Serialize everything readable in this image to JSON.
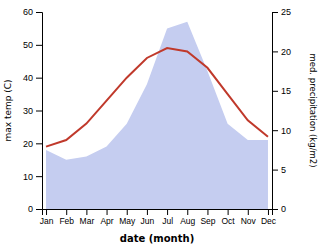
{
  "chart_data": {
    "type": "line",
    "xlabel": "date (month)",
    "ylabel": "max temp (C)",
    "y2label": "med. precipitation (kg/m2)",
    "categories": [
      "Jan",
      "Feb",
      "Mar",
      "Apr",
      "May",
      "Jun",
      "Jul",
      "Aug",
      "Sep",
      "Oct",
      "Nov",
      "Dec"
    ],
    "series": [
      {
        "type": "area",
        "color": "#c5cdf0",
        "values": [
          18,
          15,
          16,
          19,
          26,
          38,
          55,
          57,
          42,
          26,
          21,
          21
        ]
      },
      {
        "type": "line",
        "color": "#c0392b",
        "values": [
          19,
          21,
          26,
          33,
          40,
          46,
          49,
          48,
          43,
          35,
          27,
          22
        ]
      }
    ],
    "ylim": [
      0,
      60
    ],
    "yticks": [
      0,
      10,
      20,
      30,
      40,
      50,
      60
    ],
    "y2lim": [
      0,
      25
    ],
    "y2ticks": [
      0,
      5,
      10,
      15,
      20,
      25
    ],
    "grid": false
  }
}
